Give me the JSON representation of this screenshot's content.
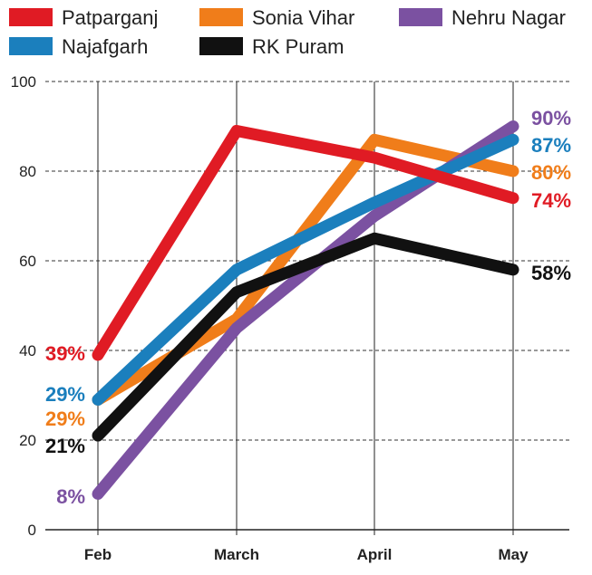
{
  "chart_data": {
    "type": "line",
    "categories": [
      "Feb",
      "March",
      "April",
      "May"
    ],
    "ylim": [
      0,
      100
    ],
    "yticks": [
      "0",
      "20",
      "40",
      "60",
      "80",
      "100"
    ],
    "grid": true,
    "legend_position": "top",
    "series": [
      {
        "name": "Patparganj",
        "color": "#e01b24",
        "values": [
          39,
          89,
          83,
          74
        ],
        "start_label": "39%",
        "end_label": "74%"
      },
      {
        "name": "Sonia Vihar",
        "color": "#f07d1a",
        "values": [
          29,
          47,
          87,
          80
        ],
        "start_label": "29%",
        "end_label": "80%"
      },
      {
        "name": "Nehru Nagar",
        "color": "#7b51a1",
        "values": [
          8,
          45,
          70,
          90
        ],
        "start_label": "8%",
        "end_label": "90%"
      },
      {
        "name": "Najafgarh",
        "color": "#1b7fbd",
        "values": [
          29,
          58,
          73,
          87
        ],
        "start_label": "29%",
        "end_label": "87%"
      },
      {
        "name": "RK Puram",
        "color": "#111111",
        "values": [
          21,
          53,
          65,
          58
        ],
        "start_label": "21%",
        "end_label": "58%"
      }
    ],
    "draw_order": [
      "Sonia Vihar",
      "Nehru Nagar",
      "Najafgarh",
      "RK Puram",
      "Patparganj"
    ]
  }
}
